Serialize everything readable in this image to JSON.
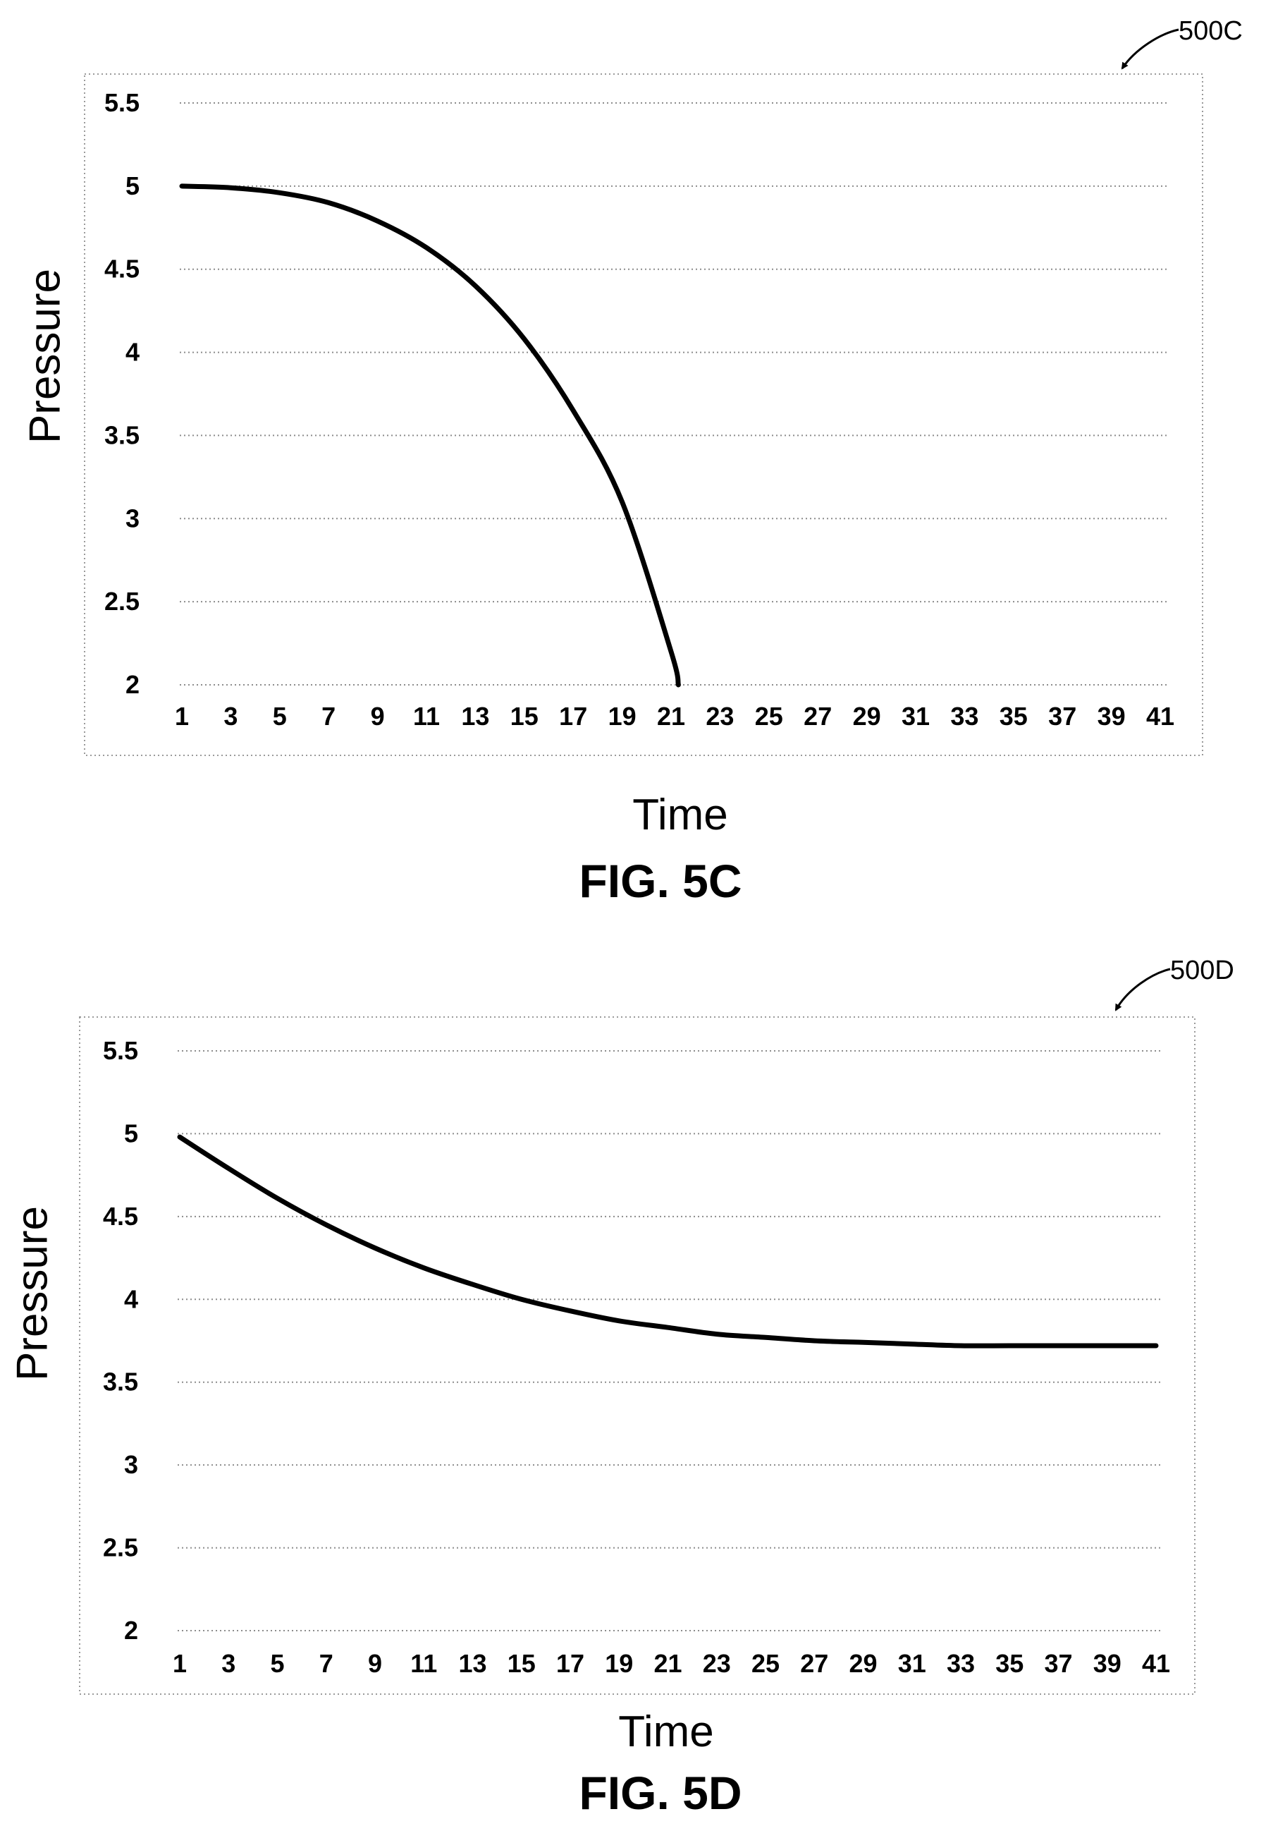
{
  "charts": [
    {
      "reference": "500C",
      "caption": "FIG. 5C",
      "chart_data": {
        "type": "line",
        "xlabel": "Time",
        "ylabel": "Pressure",
        "x": [
          1,
          3,
          5,
          7,
          9,
          11,
          13,
          15,
          17,
          19,
          21,
          21.3
        ],
        "series": [
          {
            "values": [
              5.0,
              4.99,
              4.96,
              4.9,
              4.79,
              4.63,
              4.4,
              4.08,
              3.65,
              3.1,
              2.2,
              2.0
            ]
          }
        ],
        "xticks": [
          "1",
          "3",
          "5",
          "7",
          "9",
          "11",
          "13",
          "15",
          "17",
          "19",
          "21",
          "23",
          "25",
          "27",
          "29",
          "31",
          "33",
          "35",
          "37",
          "39",
          "41"
        ],
        "yticks": [
          "2",
          "2.5",
          "3",
          "3.5",
          "4",
          "4.5",
          "5",
          "5.5"
        ],
        "xlim": [
          1,
          41
        ],
        "ylim": [
          2,
          5.5
        ],
        "grid": "horizontal dotted"
      }
    },
    {
      "reference": "500D",
      "caption": "FIG. 5D",
      "chart_data": {
        "type": "line",
        "xlabel": "Time",
        "ylabel": "Pressure",
        "x": [
          1,
          3,
          5,
          7,
          9,
          11,
          13,
          15,
          17,
          19,
          21,
          23,
          25,
          27,
          29,
          31,
          33,
          35,
          37,
          39,
          41
        ],
        "series": [
          {
            "values": [
              4.98,
              4.79,
              4.61,
              4.45,
              4.31,
              4.19,
              4.09,
              4.0,
              3.93,
              3.87,
              3.83,
              3.79,
              3.77,
              3.75,
              3.74,
              3.73,
              3.72,
              3.72,
              3.72,
              3.72,
              3.72
            ]
          }
        ],
        "xticks": [
          "1",
          "3",
          "5",
          "7",
          "9",
          "11",
          "13",
          "15",
          "17",
          "19",
          "21",
          "23",
          "25",
          "27",
          "29",
          "31",
          "33",
          "35",
          "37",
          "39",
          "41"
        ],
        "yticks": [
          "2",
          "2.5",
          "3",
          "3.5",
          "4",
          "4.5",
          "5",
          "5.5"
        ],
        "xlim": [
          1,
          41
        ],
        "ylim": [
          2,
          5.5
        ],
        "grid": "horizontal dotted"
      }
    }
  ]
}
